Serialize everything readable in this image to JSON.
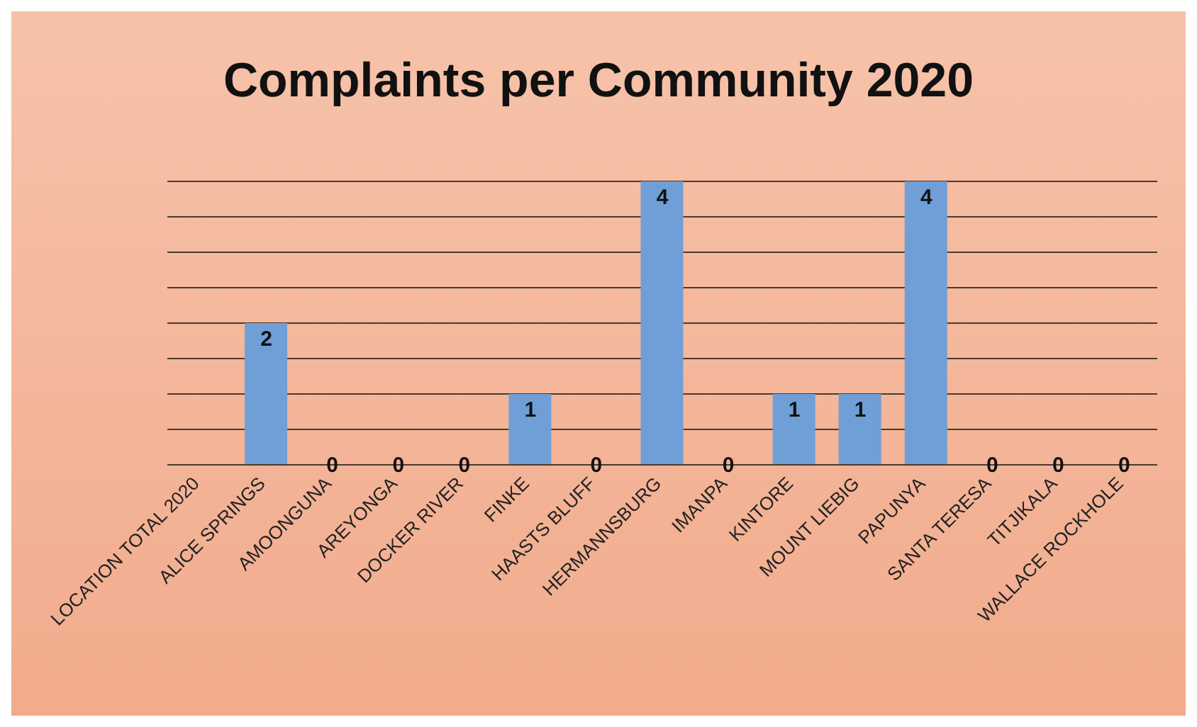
{
  "chart_data": {
    "type": "bar",
    "title": "Complaints per Community 2020",
    "categories": [
      "LOCATION TOTAL 2020",
      "ALICE SPRINGS",
      "AMOONGUNA",
      "AREYONGA",
      "DOCKER RIVER",
      "FINKE",
      "HAASTS BLUFF",
      "HERMANNSBURG",
      "IMANPA",
      "KINTORE",
      "MOUNT LIEBIG",
      "PAPUNYA",
      "SANTA TERESA",
      "TITJIKALA",
      "WALLACE ROCKHOLE"
    ],
    "values": [
      null,
      2,
      0,
      0,
      0,
      1,
      0,
      4,
      0,
      1,
      1,
      4,
      0,
      0,
      0
    ],
    "color": "#6f9fd6",
    "ylim": [
      0,
      4
    ],
    "yticks": [
      {
        "value": 0,
        "label": null
      },
      {
        "value": 0.5,
        "label": null
      },
      {
        "value": 1,
        "label": null
      },
      {
        "value": 1.5,
        "label": null
      },
      {
        "value": 2,
        "label": null
      },
      {
        "value": 2.5,
        "label": null
      },
      {
        "value": 3,
        "label": null
      },
      {
        "value": 3.5,
        "label": null
      },
      {
        "value": 4,
        "label": null
      }
    ],
    "tick_labels": "x",
    "grid": "y",
    "data_labels": true
  }
}
